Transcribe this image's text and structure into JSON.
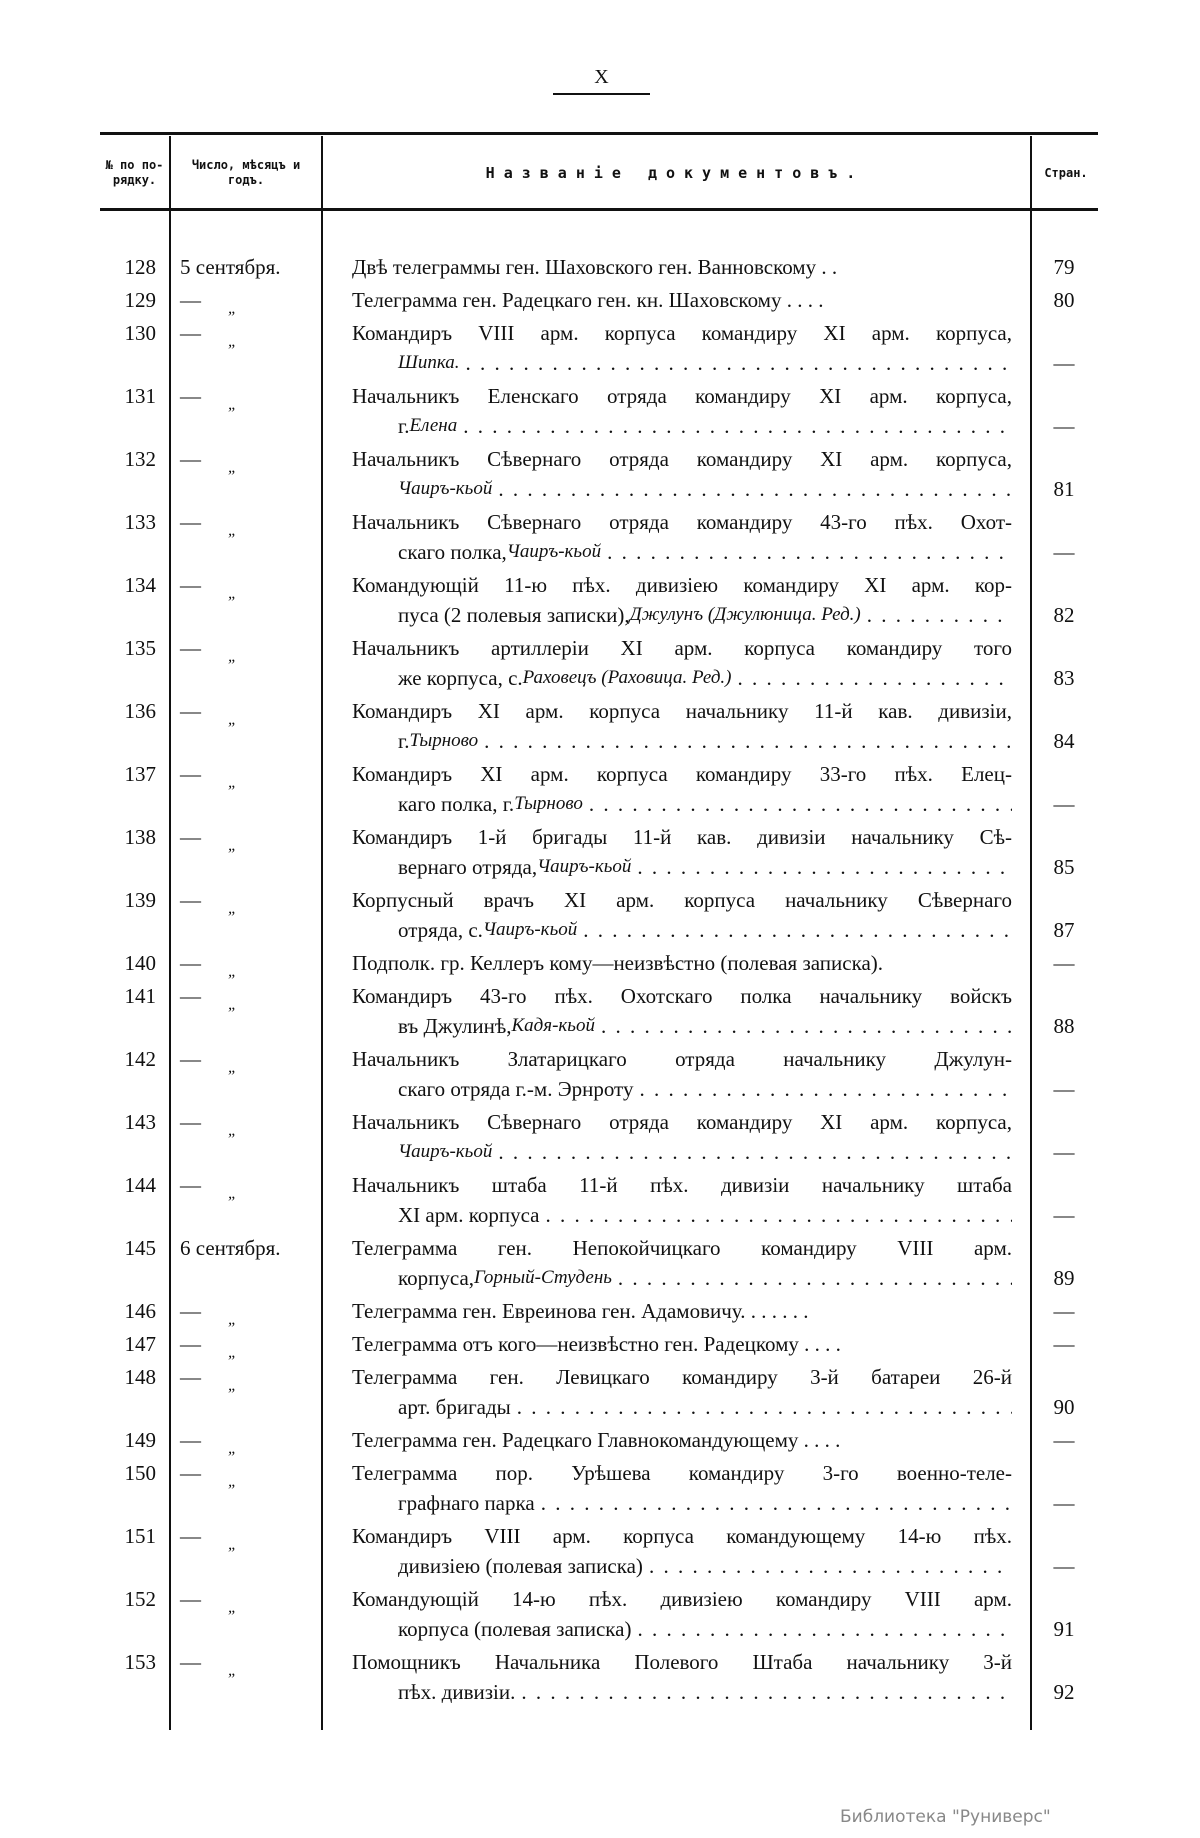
{
  "page_number": "X",
  "header": {
    "col_no": "№ по по-рядку.",
    "col_date": "Число, мѣсяцъ и годъ.",
    "col_title": "Названіе документовъ.",
    "col_page": "Стран."
  },
  "rows": [
    {
      "no": "128",
      "date": "5 сентября.",
      "l1": "Двѣ телеграммы ген. Шаховского ген. Ванновскому . .",
      "page": "79"
    },
    {
      "no": "129",
      "date": "",
      "l1": "Телеграмма ген. Радецкаго ген. кн. Шаховскому . . . .",
      "page": "80"
    },
    {
      "no": "130",
      "date": "",
      "l1": "Командиръ VIII арм. корпуса командиру XI арм. корпуса,",
      "pre": "",
      "it": "Шипка.",
      "post": "",
      "page": "—"
    },
    {
      "no": "131",
      "date": "",
      "l1": "Начальникъ Еленскаго отряда командиру XI арм. корпуса,",
      "pre": "г. ",
      "it": "Елена",
      "post": "",
      "page": "—"
    },
    {
      "no": "132",
      "date": "",
      "l1": "Начальникъ Сѣвернаго отряда командиру XI арм. корпуса,",
      "pre": "",
      "it": "Чаиръ-кьой",
      "post": "",
      "page": "81"
    },
    {
      "no": "133",
      "date": "",
      "l1": "Начальникъ Сѣвернаго отряда командиру 43-го пѣх. Охот-",
      "pre": "скаго полка, ",
      "it": "Чаиръ-кьой",
      "post": "",
      "page": "—"
    },
    {
      "no": "134",
      "date": "",
      "l1": "Командующій 11-ю пѣх. дивизіею командиру XI арм. кор-",
      "pre": "пуса (2 полевыя записки), ",
      "it": "Джулунъ (Джулюница. Ред.)",
      "post": "",
      "page": "82"
    },
    {
      "no": "135",
      "date": "",
      "l1": "Начальникъ артиллеріи XI арм. корпуса командиру того",
      "pre": "же корпуса, с. ",
      "it": "Раховецъ (Раховица. Ред.)",
      "post": "",
      "page": "83"
    },
    {
      "no": "136",
      "date": "",
      "l1": "Командиръ XI арм. корпуса начальнику 11-й кав. дивизіи,",
      "pre": "г. ",
      "it": "Тырново",
      "post": "",
      "page": "84"
    },
    {
      "no": "137",
      "date": "",
      "l1": "Командиръ XI арм. корпуса командиру 33-го пѣх. Елец-",
      "pre": "каго полка, г. ",
      "it": "Тырново",
      "post": "",
      "page": "—"
    },
    {
      "no": "138",
      "date": "",
      "l1": "Командиръ 1-й бригады 11-й кав. дивизіи начальнику Сѣ-",
      "pre": "вернаго отряда, ",
      "it": "Чаиръ-кьой",
      "post": "",
      "page": "85"
    },
    {
      "no": "139",
      "date": "",
      "l1": "Корпусный врачъ XI арм. корпуса начальнику Сѣвернаго",
      "pre": "отряда, с. ",
      "it": "Чаиръ-кьой",
      "post": "",
      "page": "87"
    },
    {
      "no": "140",
      "date": "",
      "l1": "Подполк. гр. Келлеръ кому—неизвѣстно (полевая записка).",
      "page": "—"
    },
    {
      "no": "141",
      "date": "",
      "l1": "Командиръ 43-го пѣх. Охотскаго полка начальнику войскъ",
      "pre": "въ Джулинѣ, ",
      "it": "Кадя-кьой",
      "post": "",
      "page": "88"
    },
    {
      "no": "142",
      "date": "",
      "l1": "Начальникъ Златарицкаго отряда начальнику Джулун-",
      "pre": "скаго отряда г.-м. Эрнроту",
      "it": "",
      "post": "",
      "page": "—"
    },
    {
      "no": "143",
      "date": "",
      "l1": "Начальникъ Сѣвернаго отряда командиру XI арм. корпуса,",
      "pre": "",
      "it": "Чаиръ-кьой",
      "post": "",
      "page": "—"
    },
    {
      "no": "144",
      "date": "",
      "l1": "Начальникъ штаба 11-й пѣх. дивизіи начальнику штаба",
      "pre": "XI арм. корпуса",
      "it": "",
      "post": "",
      "page": "—"
    },
    {
      "no": "145",
      "date": "6 сентября.",
      "l1": "Телеграмма ген. Непокойчицкаго командиру VIII арм.",
      "pre": "корпуса, ",
      "it": "Горный-Студень",
      "post": "",
      "page": "89"
    },
    {
      "no": "146",
      "date": "",
      "l1": "Телеграмма ген. Евреинова ген. Адамовичу. . . . . . .",
      "page": "—"
    },
    {
      "no": "147",
      "date": "",
      "l1": "Телеграмма отъ кого—неизвѣстно ген. Радецкому . . . .",
      "page": "—"
    },
    {
      "no": "148",
      "date": "",
      "l1": "Телеграмма ген. Левицкаго командиру 3-й батареи 26-й",
      "pre": "арт. бригады",
      "it": "",
      "post": "",
      "page": "90"
    },
    {
      "no": "149",
      "date": "",
      "l1": "Телеграмма ген. Радецкаго Главнокомандующему . . . .",
      "page": "—"
    },
    {
      "no": "150",
      "date": "",
      "l1": "Телеграмма пор. Урѣшева командиру 3-го военно-теле-",
      "pre": "графнаго парка",
      "it": "",
      "post": "",
      "page": "—"
    },
    {
      "no": "151",
      "date": "",
      "l1": "Командиръ VIII арм. корпуса командующему 14-ю пѣх.",
      "pre": "дивизіею (полевая записка)",
      "it": "",
      "post": "",
      "page": "—"
    },
    {
      "no": "152",
      "date": "",
      "l1": "Командующій 14-ю пѣх. дивизіею командиру VIII арм.",
      "pre": "корпуса (полевая записка)",
      "it": "",
      "post": "",
      "page": "91"
    },
    {
      "no": "153",
      "date": "",
      "l1": "Помощникъ Начальника Полевого Штаба начальнику 3-й",
      "pre": "пѣх. дивизіи.",
      "it": "",
      "post": "",
      "page": "92"
    }
  ],
  "ditto": {
    "dash": "—",
    "mark": "„"
  },
  "watermark": "Библиотека \"Руниверс\""
}
